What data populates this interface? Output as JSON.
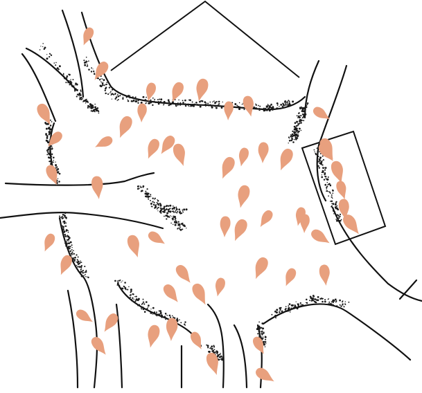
{
  "diagram": {
    "colors": {
      "background": "#ffffff",
      "outline": "#111111",
      "stipple": "#1a1a1a",
      "particle": "#e8a07e"
    },
    "regions": [
      {
        "name": "building-block",
        "kind": "outline"
      },
      {
        "name": "wall-box",
        "kind": "outline"
      },
      {
        "name": "road-network",
        "kind": "stippled-edges"
      }
    ],
    "particles": {
      "shape": "comet-teardrop",
      "count": 72
    }
  }
}
